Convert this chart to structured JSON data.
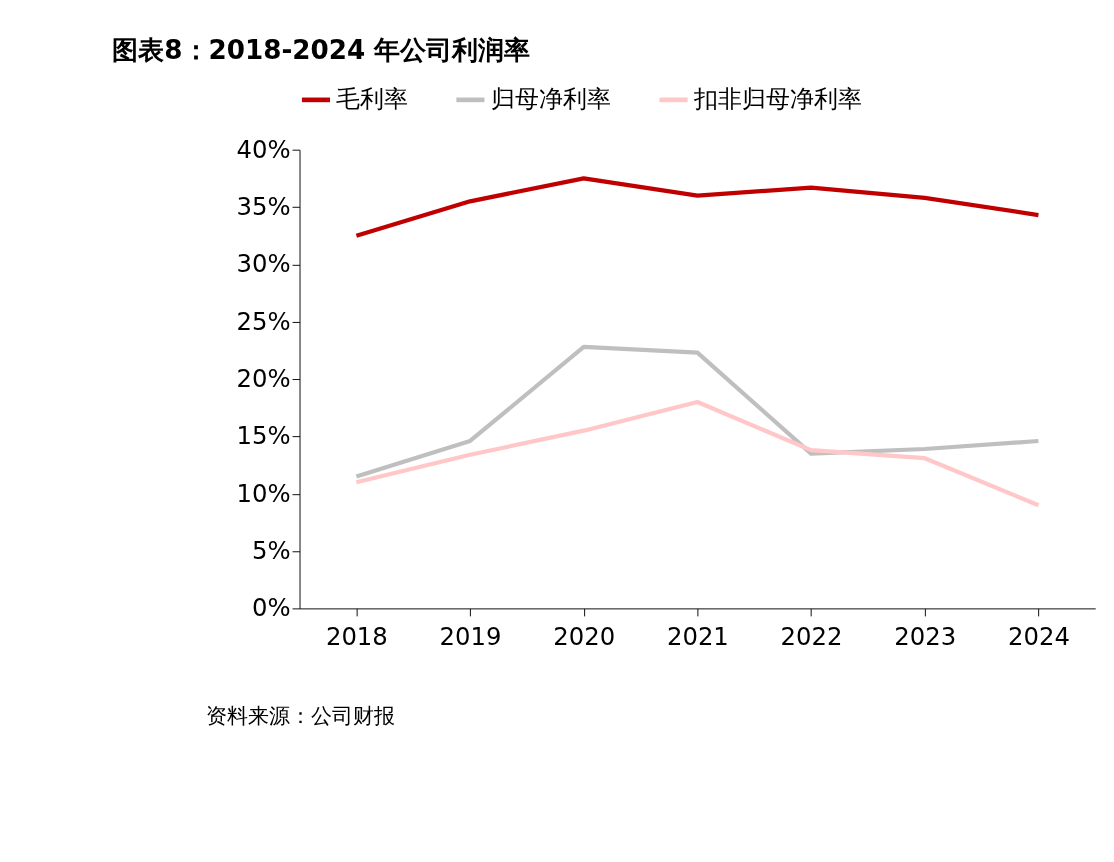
{
  "chart_data": {
    "type": "line",
    "title": "图表8：2018-2024 年公司利润率",
    "categories": [
      "2018",
      "2019",
      "2020",
      "2021",
      "2022",
      "2023",
      "2024"
    ],
    "series": [
      {
        "name": "毛利率",
        "color": "#c00000",
        "values": [
          32.5,
          35.5,
          37.5,
          36.0,
          36.7,
          35.8,
          34.3
        ]
      },
      {
        "name": "归母净利率",
        "color": "#bfbfbf",
        "values": [
          11.5,
          14.6,
          22.8,
          22.3,
          13.5,
          13.9,
          14.6
        ]
      },
      {
        "name": "扣非归母净利率",
        "color": "#ffc7c7",
        "values": [
          11.0,
          13.4,
          15.5,
          18.0,
          13.8,
          13.1,
          9.0
        ]
      }
    ],
    "ylim": [
      0,
      40
    ],
    "yticks": [
      {
        "value": 0,
        "label": "0%"
      },
      {
        "value": 5,
        "label": "5%"
      },
      {
        "value": 10,
        "label": "10%"
      },
      {
        "value": 15,
        "label": "15%"
      },
      {
        "value": 20,
        "label": "20%"
      },
      {
        "value": 25,
        "label": "25%"
      },
      {
        "value": 30,
        "label": "30%"
      },
      {
        "value": 35,
        "label": "35%"
      },
      {
        "value": 40,
        "label": "40%"
      }
    ],
    "grid": false,
    "legend": "top",
    "marker": "none",
    "line_style": "solid",
    "annotations": [
      "资料来源：公司财报"
    ]
  }
}
